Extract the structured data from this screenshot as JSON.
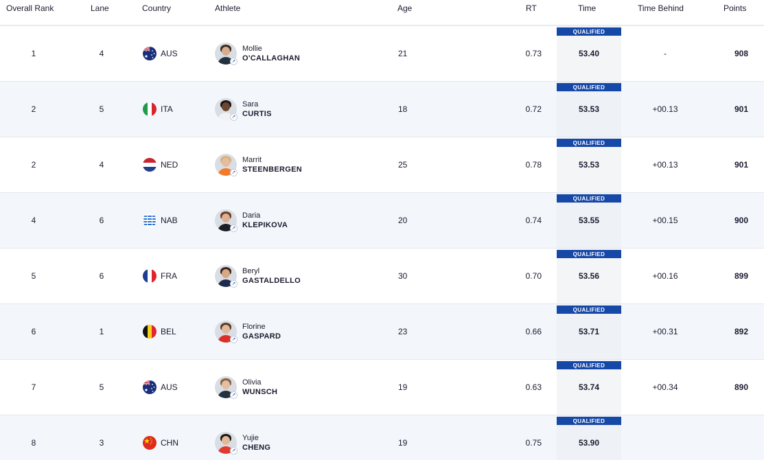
{
  "columns": {
    "rank": "Overall Rank",
    "lane": "Lane",
    "country": "Country",
    "athlete": "Athlete",
    "age": "Age",
    "rt": "RT",
    "time": "Time",
    "behind": "Time Behind",
    "points": "Points"
  },
  "rows": [
    {
      "rank": "1",
      "lane": "4",
      "flag": "aus-flag-icon",
      "country": "AUS",
      "first": "Mollie",
      "last": "O'CALLAGHAN",
      "age": "21",
      "rt": "0.73",
      "time": "53.40",
      "behind": "-",
      "points": "908",
      "badge": "QUALIFIED",
      "skin": "#d7ad8e",
      "hair": "#3f2a1c",
      "shirt": "#24313f"
    },
    {
      "rank": "2",
      "lane": "5",
      "flag": "ita-flag-icon",
      "country": "ITA",
      "first": "Sara",
      "last": "CURTIS",
      "age": "18",
      "rt": "0.72",
      "time": "53.53",
      "behind": "+00.13",
      "points": "901",
      "badge": "QUALIFIED",
      "skin": "#6b4631",
      "hair": "#1e1511",
      "shirt": "#f2f2f2"
    },
    {
      "rank": "2",
      "lane": "4",
      "flag": "ned-flag-icon",
      "country": "NED",
      "first": "Marrit",
      "last": "STEENBERGEN",
      "age": "25",
      "rt": "0.78",
      "time": "53.53",
      "behind": "+00.13",
      "points": "901",
      "badge": "QUALIFIED",
      "skin": "#e4bca0",
      "hair": "#d9b27a",
      "shirt": "#f07c2a"
    },
    {
      "rank": "4",
      "lane": "6",
      "flag": "nab-flag-icon",
      "country": "NAB",
      "first": "Daria",
      "last": "KLEPIKOVA",
      "age": "20",
      "rt": "0.74",
      "time": "53.55",
      "behind": "+00.15",
      "points": "900",
      "badge": "QUALIFIED",
      "skin": "#dcb192",
      "hair": "#6a3f24",
      "shirt": "#1c1f27"
    },
    {
      "rank": "5",
      "lane": "6",
      "flag": "fra-flag-icon",
      "country": "FRA",
      "first": "Beryl",
      "last": "GASTALDELLO",
      "age": "30",
      "rt": "0.70",
      "time": "53.56",
      "behind": "+00.16",
      "points": "899",
      "badge": "QUALIFIED",
      "skin": "#d6a886",
      "hair": "#3a2518",
      "shirt": "#1f2b4d"
    },
    {
      "rank": "6",
      "lane": "1",
      "flag": "bel-flag-icon",
      "country": "BEL",
      "first": "Florine",
      "last": "GASPARD",
      "age": "23",
      "rt": "0.66",
      "time": "53.71",
      "behind": "+00.31",
      "points": "892",
      "badge": "QUALIFIED",
      "skin": "#e2b89b",
      "hair": "#5c3a26",
      "shirt": "#d9302c"
    },
    {
      "rank": "7",
      "lane": "5",
      "flag": "aus-flag-icon",
      "country": "AUS",
      "first": "Olivia",
      "last": "WUNSCH",
      "age": "19",
      "rt": "0.63",
      "time": "53.74",
      "behind": "+00.34",
      "points": "890",
      "badge": "QUALIFIED",
      "skin": "#e3bea2",
      "hair": "#8a6140",
      "shirt": "#24313f"
    },
    {
      "rank": "8",
      "lane": "3",
      "flag": "chn-flag-icon",
      "country": "CHN",
      "first": "Yujie",
      "last": "CHENG",
      "age": "19",
      "rt": "0.75",
      "time": "53.90",
      "behind": "",
      "points": "",
      "badge": "QUALIFIED",
      "skin": "#e1b898",
      "hair": "#1b1512",
      "shirt": "#e23a32"
    }
  ]
}
